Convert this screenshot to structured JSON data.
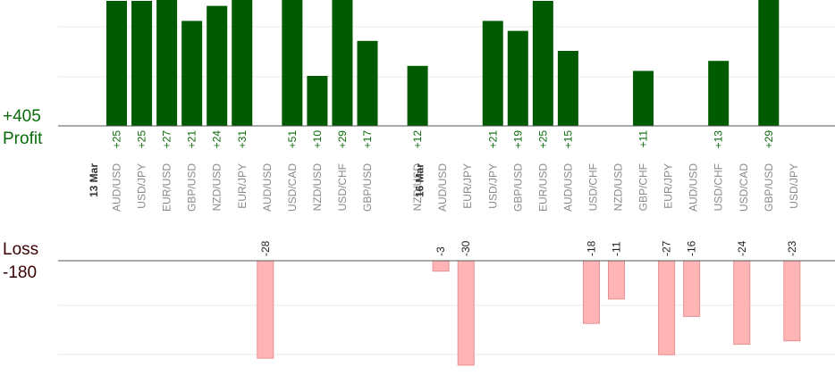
{
  "summary": {
    "profit_total": "+405",
    "profit_label": "Profit",
    "loss_label": "Loss",
    "loss_total": "-180"
  },
  "colors": {
    "profit_bar": "#005a00",
    "profit_text": "#0a6a0a",
    "loss_fill": "#ffb5b5",
    "loss_stroke": "#e89090",
    "category_text": "#8a8a8a",
    "date_text": "#333333",
    "grid": "#e8e8e8",
    "axis": "#555555"
  },
  "chart_data": {
    "type": "bar",
    "grid": true,
    "date_markers": [
      {
        "label": "13 Mar",
        "slot": 0
      },
      {
        "label": "16 Mar",
        "slot": 13
      }
    ],
    "categories": [
      "AUD/USD",
      "USD/JPY",
      "EUR/USD",
      "GBP/USD",
      "NZD/USD",
      "EUR/JPY",
      "AUD/USD",
      "USD/CAD",
      "NZD/USD",
      "USD/CHF",
      "GBP/USD",
      "",
      "NZD/USD",
      "AUD/USD",
      "EUR/JPY",
      "USD/JPY",
      "GBP/USD",
      "EUR/USD",
      "AUD/USD",
      "USD/CHF",
      "NZD/USD",
      "GBP/CHF",
      "EUR/JPY",
      "AUD/USD",
      "USD/CHF",
      "USD/CAD",
      "GBP/USD",
      "USD/JPY"
    ],
    "series": [
      {
        "values": [
          25,
          25,
          27,
          21,
          24,
          31,
          null,
          51,
          10,
          29,
          17,
          null,
          12,
          null,
          null,
          21,
          19,
          25,
          15,
          null,
          null,
          11,
          null,
          null,
          13,
          null,
          29,
          null
        ],
        "labels": [
          "+25",
          "+25",
          "+27",
          "+21",
          "+24",
          "+31",
          "",
          "+51",
          "+10",
          "+29",
          "+17",
          "",
          "+12",
          "",
          "",
          "+21",
          "+19",
          "+25",
          "+15",
          "",
          "",
          "+11",
          "",
          "",
          "+13",
          "",
          "+29",
          ""
        ]
      },
      {
        "values": [
          null,
          null,
          null,
          null,
          null,
          null,
          -28,
          null,
          null,
          null,
          null,
          null,
          null,
          -3,
          -30,
          null,
          null,
          null,
          null,
          -18,
          -11,
          null,
          -27,
          -16,
          null,
          -24,
          null,
          -23
        ],
        "labels": [
          "",
          "",
          "",
          "",
          "",
          "",
          "-28",
          "",
          "",
          "",
          "",
          "",
          "",
          "-3",
          "-30",
          "",
          "",
          "",
          "",
          "-18",
          "-11",
          "",
          "-27",
          "-16",
          "",
          "-24",
          "",
          "-23"
        ]
      }
    ]
  }
}
